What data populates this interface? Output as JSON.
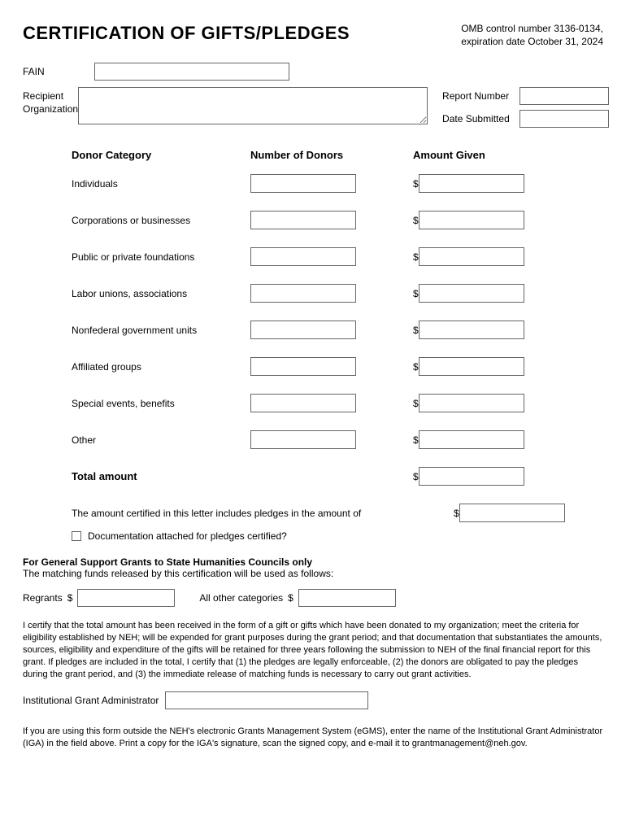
{
  "header": {
    "title": "CERTIFICATION OF GIFTS/PLEDGES",
    "omb_line1": "OMB control number 3136-0134,",
    "omb_line2": "expiration date October 31, 2024"
  },
  "fields": {
    "fain_label": "FAIN",
    "fain_value": "",
    "recipient_label": "Recipient Organization",
    "recipient_value": "",
    "report_number_label": "Report Number",
    "report_number_value": "",
    "date_submitted_label": "Date Submitted",
    "date_submitted_value": ""
  },
  "donor": {
    "col_category": "Donor Category",
    "col_number": "Number of Donors",
    "col_amount": "Amount Given",
    "currency": "$",
    "rows": [
      {
        "label": "Individuals",
        "number": "",
        "amount": ""
      },
      {
        "label": "Corporations or businesses",
        "number": "",
        "amount": ""
      },
      {
        "label": "Public or private foundations",
        "number": "",
        "amount": ""
      },
      {
        "label": "Labor unions, associations",
        "number": "",
        "amount": ""
      },
      {
        "label": "Nonfederal government units",
        "number": "",
        "amount": ""
      },
      {
        "label": "Affiliated groups",
        "number": "",
        "amount": ""
      },
      {
        "label": "Special events, benefits",
        "number": "",
        "amount": ""
      },
      {
        "label": "Other",
        "number": "",
        "amount": ""
      }
    ],
    "total_label": "Total amount",
    "total_amount": ""
  },
  "pledge": {
    "text": "The amount certified in this letter includes pledges in the amount of",
    "amount": "",
    "checkbox_label": "Documentation attached for pledges certified?"
  },
  "state_section": {
    "heading": "For General Support Grants to State Humanities Councils only",
    "sub": "The matching funds released by this certification will be used as follows:",
    "regrants_label": "Regrants",
    "regrants_value": "",
    "allother_label": "All other categories",
    "allother_value": ""
  },
  "certification_text": "I certify that the total amount has been received in the form of a gift or gifts which have been donated to my organization; meet the criteria for eligibility established by NEH; will be expended for grant purposes during the grant period; and that documentation that substantiates the amounts, sources, eligibility and expenditure of the gifts will be retained for three years following the submission to NEH of the final financial report for this grant.  If pledges are included in the total, I certify that (1) the pledges are legally enforceable, (2) the donors are obligated to pay the pledges during the grant period, and (3) the immediate release of matching funds is necessary to carry out grant activities.",
  "iga": {
    "label": "Institutional Grant Administrator",
    "value": ""
  },
  "footer_text": "If you are using this form outside the NEH's electronic Grants Management System (eGMS), enter the name of the Institutional Grant Administrator (IGA) in the field above.  Print a copy for the IGA's signature, scan the signed copy, and e-mail it to grantmanagement@neh.gov."
}
